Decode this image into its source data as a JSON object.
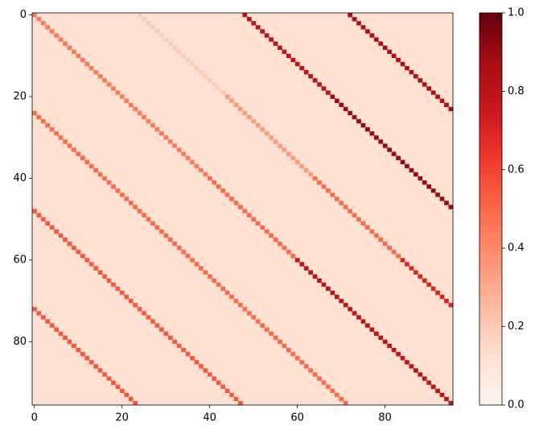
{
  "chart_data": {
    "type": "heatmap",
    "colormap": "Reds",
    "base_value": 0.12,
    "diagonals": [
      {
        "offset": -72,
        "values": [
          0.55,
          0.55,
          0.55,
          0.55,
          0.55,
          0.55,
          0.55,
          0.55,
          0.55,
          0.55,
          0.55,
          0.55,
          0.55,
          0.55,
          0.55,
          0.55,
          0.55,
          0.55,
          0.55,
          0.55,
          0.55,
          0.55,
          0.55,
          0.55
        ]
      },
      {
        "offset": -48,
        "values": [
          0.55,
          0.55,
          0.55,
          0.55,
          0.55,
          0.55,
          0.55,
          0.55,
          0.55,
          0.55,
          0.55,
          0.55,
          0.55,
          0.55,
          0.55,
          0.55,
          0.55,
          0.55,
          0.55,
          0.55,
          0.55,
          0.55,
          0.55,
          0.55,
          0.55,
          0.55,
          0.55,
          0.55,
          0.55,
          0.55,
          0.55,
          0.55,
          0.55,
          0.55,
          0.55,
          0.55,
          0.55,
          0.55,
          0.55,
          0.55,
          0.55,
          0.55,
          0.55,
          0.55,
          0.55,
          0.55,
          0.55,
          0.55
        ]
      },
      {
        "offset": -24,
        "values": [
          0.5,
          0.5,
          0.5,
          0.5,
          0.5,
          0.5,
          0.5,
          0.5,
          0.5,
          0.5,
          0.5,
          0.5,
          0.5,
          0.5,
          0.5,
          0.5,
          0.5,
          0.5,
          0.5,
          0.5,
          0.5,
          0.5,
          0.5,
          0.5,
          0.5,
          0.5,
          0.5,
          0.5,
          0.5,
          0.5,
          0.5,
          0.5,
          0.5,
          0.5,
          0.5,
          0.5,
          0.5,
          0.5,
          0.5,
          0.5,
          0.5,
          0.5,
          0.5,
          0.5,
          0.5,
          0.5,
          0.5,
          0.5,
          0.5,
          0.5,
          0.5,
          0.5,
          0.5,
          0.5,
          0.5,
          0.5,
          0.5,
          0.5,
          0.5,
          0.5,
          0.5,
          0.5,
          0.5,
          0.5,
          0.5,
          0.5,
          0.5,
          0.5,
          0.5,
          0.5,
          0.5,
          0.5
        ]
      },
      {
        "offset": 0,
        "values": [
          0.45,
          0.45,
          0.45,
          0.45,
          0.45,
          0.45,
          0.45,
          0.45,
          0.45,
          0.45,
          0.45,
          0.45,
          0.45,
          0.45,
          0.45,
          0.45,
          0.45,
          0.45,
          0.45,
          0.45,
          0.45,
          0.45,
          0.45,
          0.45,
          0.45,
          0.45,
          0.45,
          0.45,
          0.45,
          0.45,
          0.45,
          0.45,
          0.45,
          0.45,
          0.45,
          0.45,
          0.45,
          0.45,
          0.45,
          0.45,
          0.5,
          0.5,
          0.5,
          0.5,
          0.5,
          0.5,
          0.5,
          0.5,
          0.5,
          0.5,
          0.5,
          0.5,
          0.5,
          0.5,
          0.5,
          0.5,
          0.5,
          0.5,
          0.5,
          0.5,
          0.8,
          0.8,
          0.8,
          0.8,
          0.8,
          0.8,
          0.8,
          0.8,
          0.8,
          0.8,
          0.8,
          0.8,
          0.8,
          0.8,
          0.8,
          0.8,
          0.8,
          0.8,
          0.8,
          0.8,
          0.8,
          0.8,
          0.8,
          0.8,
          0.8,
          0.8,
          0.8,
          0.8,
          0.8,
          0.8,
          0.8,
          0.8,
          0.8,
          0.8,
          0.8,
          0.8
        ]
      },
      {
        "offset": 24,
        "values": [
          0.2,
          0.2,
          0.2,
          0.2,
          0.2,
          0.2,
          0.2,
          0.2,
          0.2,
          0.2,
          0.2,
          0.2,
          0.2,
          0.2,
          0.2,
          0.2,
          0.2,
          0.2,
          0.2,
          0.2,
          0.35,
          0.35,
          0.35,
          0.35,
          0.35,
          0.35,
          0.35,
          0.35,
          0.35,
          0.35,
          0.35,
          0.35,
          0.35,
          0.35,
          0.35,
          0.35,
          0.35,
          0.35,
          0.35,
          0.35,
          0.5,
          0.5,
          0.5,
          0.5,
          0.5,
          0.5,
          0.5,
          0.5,
          0.5,
          0.5,
          0.5,
          0.5,
          0.5,
          0.5,
          0.5,
          0.5,
          0.5,
          0.5,
          0.5,
          0.5,
          0.7,
          0.7,
          0.7,
          0.7,
          0.7,
          0.7,
          0.7,
          0.7,
          0.7,
          0.7,
          0.7,
          0.7
        ]
      },
      {
        "offset": 48,
        "values": [
          0.8,
          0.8,
          0.8,
          0.8,
          0.8,
          0.8,
          0.8,
          0.8,
          0.8,
          0.8,
          0.8,
          0.8,
          0.8,
          0.8,
          0.8,
          0.8,
          0.8,
          0.8,
          0.8,
          0.8,
          0.9,
          0.9,
          0.9,
          0.9,
          0.9,
          0.9,
          0.9,
          0.9,
          0.9,
          0.9,
          0.9,
          0.9,
          0.9,
          0.9,
          0.9,
          0.9,
          0.9,
          0.9,
          0.9,
          0.9,
          0.9,
          0.9,
          0.9,
          0.9,
          0.9,
          0.9,
          0.9,
          0.9
        ]
      },
      {
        "offset": 72,
        "values": [
          0.85,
          0.85,
          0.85,
          0.85,
          0.85,
          0.85,
          0.85,
          0.85,
          0.85,
          0.85,
          0.85,
          0.85,
          0.85,
          0.85,
          0.85,
          0.85,
          0.85,
          0.85,
          0.85,
          0.85,
          0.85,
          0.85,
          0.85,
          0.85
        ]
      }
    ],
    "xlim": [
      -0.5,
      95.5
    ],
    "ylim": [
      95.5,
      -0.5
    ],
    "xticks": [
      0,
      20,
      40,
      60,
      80
    ],
    "yticks": [
      0,
      20,
      40,
      60,
      80
    ],
    "clim": [
      0,
      1
    ],
    "cticks": [
      {
        "value": 0,
        "label": "0.0"
      },
      0.2,
      0.4,
      0.6,
      0.8,
      {
        "value": 1,
        "label": "1.0"
      }
    ]
  }
}
